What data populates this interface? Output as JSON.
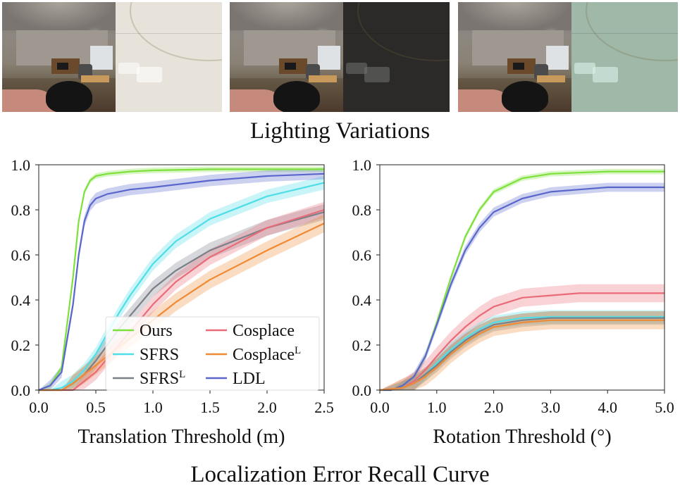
{
  "top_caption": "Lighting Variations",
  "bottom_caption": "Localization Error Recall Curve",
  "panels": [
    {
      "relit_color": "#e7e3da"
    },
    {
      "relit_color": "#2b2a28"
    },
    {
      "relit_color": "#9fb8a8"
    }
  ],
  "chart_data": [
    {
      "type": "line",
      "xlabel": "Translation Threshold (m)",
      "ylabel": "",
      "xlim": [
        0,
        2.5
      ],
      "ylim": [
        0,
        1.0
      ],
      "xticks": [
        "0.0",
        "0.5",
        "1.0",
        "1.5",
        "2.0",
        "2.5"
      ],
      "yticks": [
        "0.0",
        "0.2",
        "0.4",
        "0.6",
        "0.8",
        "1.0"
      ],
      "grid": false,
      "legend": "bottom-right",
      "series": [
        {
          "name": "Ours",
          "color": "#7ee03c",
          "band": 0.012,
          "x": [
            0,
            0.1,
            0.2,
            0.3,
            0.35,
            0.4,
            0.45,
            0.5,
            0.6,
            0.8,
            1.0,
            1.5,
            2.0,
            2.5
          ],
          "y": [
            0,
            0.02,
            0.1,
            0.5,
            0.75,
            0.88,
            0.93,
            0.95,
            0.96,
            0.97,
            0.975,
            0.98,
            0.98,
            0.98
          ]
        },
        {
          "name": "SFRS",
          "color": "#4fdde8",
          "band": 0.03,
          "x": [
            0,
            0.1,
            0.2,
            0.3,
            0.4,
            0.5,
            0.6,
            0.7,
            0.8,
            1.0,
            1.2,
            1.5,
            2.0,
            2.5
          ],
          "y": [
            0,
            0.0,
            0.01,
            0.04,
            0.09,
            0.16,
            0.25,
            0.34,
            0.42,
            0.56,
            0.66,
            0.76,
            0.86,
            0.92
          ]
        },
        {
          "name": "SFRS^L",
          "color": "#7a7f88",
          "band": 0.035,
          "x": [
            0,
            0.2,
            0.3,
            0.4,
            0.5,
            0.6,
            0.7,
            0.8,
            1.0,
            1.2,
            1.5,
            2.0,
            2.5
          ],
          "y": [
            0,
            0.0,
            0.03,
            0.07,
            0.13,
            0.2,
            0.27,
            0.33,
            0.45,
            0.53,
            0.62,
            0.72,
            0.79
          ]
        },
        {
          "name": "Cosplace",
          "color": "#ea6b78",
          "band": 0.035,
          "x": [
            0,
            0.3,
            0.4,
            0.5,
            0.6,
            0.7,
            0.8,
            1.0,
            1.2,
            1.5,
            2.0,
            2.5
          ],
          "y": [
            0,
            0.0,
            0.04,
            0.08,
            0.14,
            0.2,
            0.26,
            0.38,
            0.48,
            0.59,
            0.72,
            0.8
          ]
        },
        {
          "name": "Cosplace^L",
          "color": "#f08a34",
          "band": 0.04,
          "x": [
            0,
            0.2,
            0.3,
            0.4,
            0.5,
            0.6,
            0.8,
            1.0,
            1.2,
            1.5,
            2.0,
            2.5
          ],
          "y": [
            0,
            0.0,
            0.03,
            0.07,
            0.11,
            0.15,
            0.23,
            0.31,
            0.39,
            0.49,
            0.62,
            0.74
          ]
        },
        {
          "name": "LDL",
          "color": "#5a66cc",
          "band": 0.025,
          "x": [
            0,
            0.1,
            0.2,
            0.3,
            0.35,
            0.4,
            0.45,
            0.5,
            0.6,
            0.7,
            0.8,
            1.0,
            1.5,
            2.0,
            2.5
          ],
          "y": [
            0,
            0.02,
            0.08,
            0.38,
            0.6,
            0.75,
            0.82,
            0.85,
            0.87,
            0.88,
            0.89,
            0.9,
            0.93,
            0.95,
            0.96
          ]
        }
      ]
    },
    {
      "type": "line",
      "xlabel": "Rotation Threshold (°)",
      "ylabel": "",
      "xlim": [
        0,
        5.0
      ],
      "ylim": [
        0,
        1.0
      ],
      "xticks": [
        "0.0",
        "1.0",
        "2.0",
        "3.0",
        "4.0",
        "5.0"
      ],
      "yticks": [
        "0.0",
        "0.2",
        "0.4",
        "0.6",
        "0.8",
        "1.0"
      ],
      "grid": false,
      "series": [
        {
          "name": "Ours",
          "color": "#7ee03c",
          "band": 0.012,
          "x": [
            0,
            0.2,
            0.4,
            0.6,
            0.8,
            1.0,
            1.25,
            1.5,
            1.75,
            2.0,
            2.5,
            3.0,
            3.5,
            4.0,
            5.0
          ],
          "y": [
            0,
            0.0,
            0.02,
            0.06,
            0.15,
            0.3,
            0.5,
            0.68,
            0.8,
            0.88,
            0.94,
            0.96,
            0.965,
            0.97,
            0.97
          ]
        },
        {
          "name": "LDL",
          "color": "#5a66cc",
          "band": 0.02,
          "x": [
            0,
            0.2,
            0.4,
            0.6,
            0.8,
            1.0,
            1.25,
            1.5,
            1.75,
            2.0,
            2.5,
            3.0,
            3.5,
            4.0,
            5.0
          ],
          "y": [
            0,
            0.0,
            0.02,
            0.06,
            0.15,
            0.29,
            0.47,
            0.62,
            0.72,
            0.79,
            0.85,
            0.88,
            0.89,
            0.9,
            0.9
          ]
        },
        {
          "name": "Cosplace",
          "color": "#ea6b78",
          "band": 0.04,
          "x": [
            0,
            0.4,
            0.6,
            0.8,
            1.0,
            1.25,
            1.5,
            1.75,
            2.0,
            2.5,
            3.0,
            3.5,
            4.0,
            5.0
          ],
          "y": [
            0,
            0.01,
            0.04,
            0.09,
            0.15,
            0.22,
            0.28,
            0.33,
            0.37,
            0.41,
            0.42,
            0.43,
            0.43,
            0.43
          ]
        },
        {
          "name": "SFRS",
          "color": "#4fdde8",
          "band": 0.03,
          "x": [
            0,
            0.4,
            0.6,
            0.8,
            1.0,
            1.25,
            1.5,
            1.75,
            2.0,
            2.5,
            3.0,
            3.5,
            4.0,
            5.0
          ],
          "y": [
            0,
            0.01,
            0.03,
            0.07,
            0.12,
            0.18,
            0.23,
            0.27,
            0.3,
            0.32,
            0.325,
            0.325,
            0.325,
            0.325
          ]
        },
        {
          "name": "SFRS^L",
          "color": "#7a7f88",
          "band": 0.03,
          "x": [
            0,
            0.4,
            0.6,
            0.8,
            1.0,
            1.25,
            1.5,
            1.75,
            2.0,
            2.5,
            3.0,
            3.5,
            4.0,
            5.0
          ],
          "y": [
            0,
            0.01,
            0.03,
            0.07,
            0.11,
            0.17,
            0.22,
            0.26,
            0.29,
            0.31,
            0.32,
            0.32,
            0.32,
            0.32
          ]
        },
        {
          "name": "Cosplace^L",
          "color": "#f08a34",
          "band": 0.04,
          "x": [
            0,
            0.4,
            0.6,
            0.8,
            1.0,
            1.25,
            1.5,
            1.75,
            2.0,
            2.5,
            3.0,
            3.5,
            4.0,
            5.0
          ],
          "y": [
            0,
            0.01,
            0.03,
            0.06,
            0.1,
            0.16,
            0.21,
            0.25,
            0.28,
            0.3,
            0.31,
            0.31,
            0.31,
            0.31
          ]
        }
      ]
    }
  ],
  "legend": [
    {
      "label": "Ours",
      "sup": "",
      "color": "#7ee03c"
    },
    {
      "label": "Cosplace",
      "sup": "",
      "color": "#ea6b78"
    },
    {
      "label": "SFRS",
      "sup": "",
      "color": "#4fdde8"
    },
    {
      "label": "Cosplace",
      "sup": "L",
      "color": "#f08a34"
    },
    {
      "label": "SFRS",
      "sup": "L",
      "color": "#7a7f88"
    },
    {
      "label": "LDL",
      "sup": "",
      "color": "#5a66cc"
    }
  ]
}
